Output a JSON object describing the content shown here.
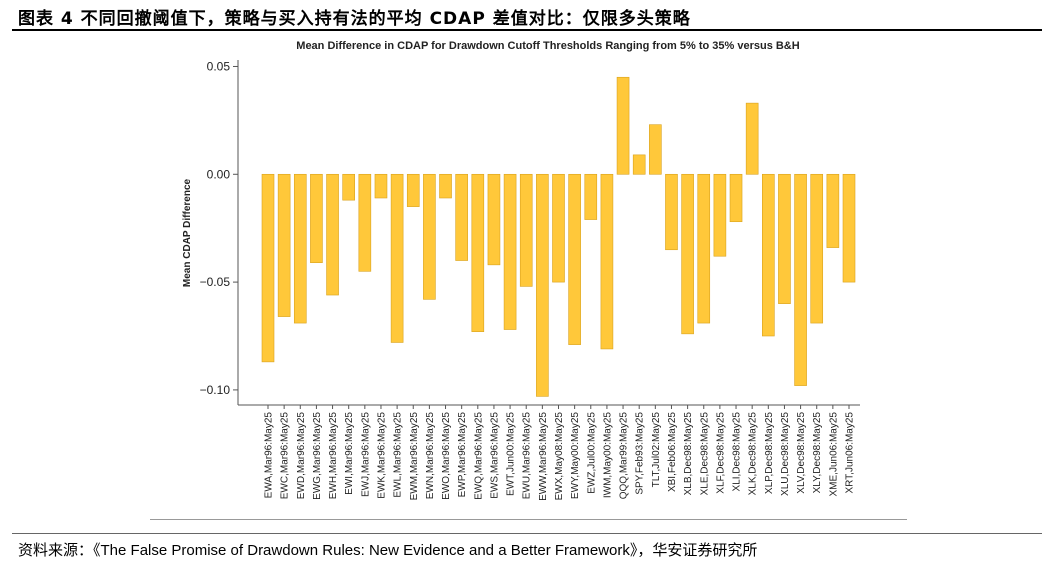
{
  "header": {
    "figure_title": "图表 4 不同回撤阈值下，策略与买入持有法的平均 CDAP 差值对比：仅限多头策略"
  },
  "source": {
    "label": "资料来源：",
    "book": "《The False Promise of Drawdown Rules: New Evidence and a Better Framework》",
    "publisher": "，华安证券研究所"
  },
  "colors": {
    "bar_fill": "#FFC83A",
    "bar_stroke": "#D9A21E",
    "axis": "#555555"
  },
  "chart_data": {
    "type": "bar",
    "title": "Mean Difference in CDAP for Drawdown Cutoff Thresholds Ranging from 5% to 35% versus B&H",
    "xlabel": "",
    "ylabel": "Mean CDAP Difference",
    "ylim": [
      -0.107,
      0.053
    ],
    "yticks": [
      0.05,
      0.0,
      -0.05,
      -0.1
    ],
    "ytick_labels": [
      "0.05",
      "0.00",
      "−0.05",
      "−0.10"
    ],
    "grid": false,
    "categories": [
      "EWA,Mar96:May25",
      "EWC,Mar96:May25",
      "EWD,Mar96:May25",
      "EWG,Mar96:May25",
      "EWH,Mar96:May25",
      "EWI,Mar96:May25",
      "EWJ,Mar96:May25",
      "EWK,Mar96:May25",
      "EWL,Mar96:May25",
      "EWM,Mar96:May25",
      "EWN,Mar96:May25",
      "EWO,Mar96:May25",
      "EWP,Mar96:May25",
      "EWQ,Mar96:May25",
      "EWS,Mar96:May25",
      "EWT,Jun00:May25",
      "EWU,Mar96:May25",
      "EWW,Mar96:May25",
      "EWX,May08:May25",
      "EWY,May00:May25",
      "EWZ,Jul00:May25",
      "IWM,May00:May25",
      "QQQ,Mar99:May25",
      "SPY,Feb93:May25",
      "TLT,Jul02:May25",
      "XBI,Feb06:May25",
      "XLB,Dec98:May25",
      "XLE,Dec98:May25",
      "XLF,Dec98:May25",
      "XLI,Dec98:May25",
      "XLK,Dec98:May25",
      "XLP,Dec98:May25",
      "XLU,Dec98:May25",
      "XLV,Dec98:May25",
      "XLY,Dec98:May25",
      "XME,Jun06:May25",
      "XRT,Jun06:May25"
    ],
    "values": [
      -0.087,
      -0.066,
      -0.069,
      -0.041,
      -0.056,
      -0.012,
      -0.045,
      -0.011,
      -0.078,
      -0.015,
      -0.058,
      -0.011,
      -0.04,
      -0.073,
      -0.042,
      -0.072,
      -0.052,
      -0.103,
      -0.05,
      -0.079,
      -0.021,
      -0.081,
      0.045,
      0.009,
      0.023,
      -0.035,
      -0.074,
      -0.069,
      -0.038,
      -0.022,
      0.033,
      -0.075,
      -0.06,
      -0.098,
      -0.069,
      -0.034,
      -0.05
    ]
  }
}
